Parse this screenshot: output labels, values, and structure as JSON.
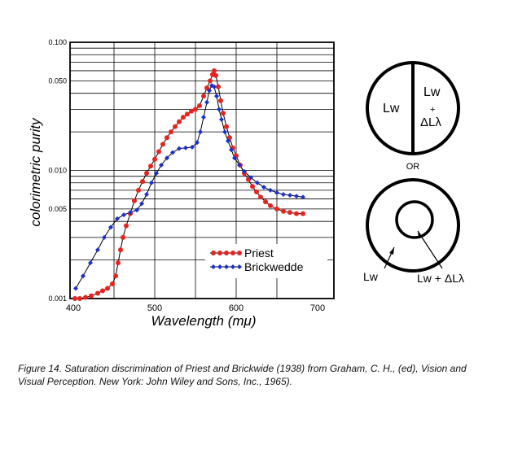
{
  "chart_data": {
    "type": "line",
    "scale_y": "log",
    "grid": true,
    "legend_position": "bottom-right",
    "xlabel": "Wavelength (mμ)",
    "ylabel": "colorimetric purity",
    "x_ticks": [
      "400",
      "500",
      "600",
      "700"
    ],
    "y_ticks": [
      "0.001",
      "0.005",
      "0.010",
      "0.050",
      "0.100"
    ],
    "xlim": [
      400,
      700
    ],
    "ylim": [
      0.001,
      0.1
    ],
    "series": [
      {
        "name": "Priest",
        "color": "#e8231e",
        "points": [
          [
            402,
            0.001
          ],
          [
            408,
            0.001
          ],
          [
            415,
            0.00102
          ],
          [
            422,
            0.00105
          ],
          [
            430,
            0.0011
          ],
          [
            436,
            0.00115
          ],
          [
            442,
            0.0012
          ],
          [
            448,
            0.0013
          ],
          [
            452,
            0.0015
          ],
          [
            455,
            0.0019
          ],
          [
            458,
            0.0024
          ],
          [
            461,
            0.003
          ],
          [
            465,
            0.0037
          ],
          [
            470,
            0.0046
          ],
          [
            475,
            0.0058
          ],
          [
            480,
            0.007
          ],
          [
            485,
            0.0082
          ],
          [
            490,
            0.0095
          ],
          [
            495,
            0.0108
          ],
          [
            500,
            0.0122
          ],
          [
            505,
            0.014
          ],
          [
            510,
            0.016
          ],
          [
            515,
            0.018
          ],
          [
            520,
            0.02
          ],
          [
            525,
            0.022
          ],
          [
            530,
            0.024
          ],
          [
            535,
            0.026
          ],
          [
            540,
            0.0275
          ],
          [
            545,
            0.029
          ],
          [
            550,
            0.03
          ],
          [
            555,
            0.032
          ],
          [
            560,
            0.038
          ],
          [
            564,
            0.044
          ],
          [
            568,
            0.05
          ],
          [
            571,
            0.056
          ],
          [
            573,
            0.06
          ],
          [
            575,
            0.055
          ],
          [
            578,
            0.045
          ],
          [
            581,
            0.035
          ],
          [
            584,
            0.028
          ],
          [
            588,
            0.022
          ],
          [
            592,
            0.018
          ],
          [
            596,
            0.015
          ],
          [
            600,
            0.013
          ],
          [
            605,
            0.011
          ],
          [
            610,
            0.0095
          ],
          [
            615,
            0.0085
          ],
          [
            620,
            0.0075
          ],
          [
            625,
            0.0068
          ],
          [
            630,
            0.0062
          ],
          [
            636,
            0.0057
          ],
          [
            642,
            0.0053
          ],
          [
            650,
            0.005
          ],
          [
            658,
            0.0048
          ],
          [
            666,
            0.0047
          ],
          [
            674,
            0.0046
          ],
          [
            682,
            0.0046
          ]
        ]
      },
      {
        "name": "Brickwedde",
        "color": "#1a2fd0",
        "points": [
          [
            403,
            0.0012
          ],
          [
            412,
            0.0015
          ],
          [
            421,
            0.0019
          ],
          [
            430,
            0.0024
          ],
          [
            438,
            0.003
          ],
          [
            446,
            0.0036
          ],
          [
            454,
            0.0042
          ],
          [
            462,
            0.0045
          ],
          [
            470,
            0.0047
          ],
          [
            478,
            0.0049
          ],
          [
            484,
            0.0055
          ],
          [
            490,
            0.0065
          ],
          [
            496,
            0.008
          ],
          [
            502,
            0.0095
          ],
          [
            508,
            0.011
          ],
          [
            515,
            0.0125
          ],
          [
            522,
            0.0138
          ],
          [
            530,
            0.0148
          ],
          [
            538,
            0.015
          ],
          [
            546,
            0.0152
          ],
          [
            552,
            0.0165
          ],
          [
            556,
            0.02
          ],
          [
            560,
            0.026
          ],
          [
            564,
            0.034
          ],
          [
            567,
            0.042
          ],
          [
            570,
            0.046
          ],
          [
            573,
            0.045
          ],
          [
            576,
            0.038
          ],
          [
            579,
            0.03
          ],
          [
            582,
            0.025
          ],
          [
            586,
            0.02
          ],
          [
            590,
            0.017
          ],
          [
            594,
            0.0145
          ],
          [
            598,
            0.0125
          ],
          [
            604,
            0.011
          ],
          [
            610,
            0.0098
          ],
          [
            618,
            0.0088
          ],
          [
            626,
            0.008
          ],
          [
            634,
            0.0074
          ],
          [
            642,
            0.007
          ],
          [
            650,
            0.0067
          ],
          [
            658,
            0.0065
          ],
          [
            666,
            0.0064
          ],
          [
            674,
            0.0063
          ],
          [
            682,
            0.0062
          ]
        ]
      }
    ]
  },
  "legend": {
    "priest": "Priest",
    "brickwedde": "Brickwedde"
  },
  "diagram": {
    "label_lw": "Lw",
    "label_lw_plus": "Lw",
    "label_plus": "+",
    "label_delta": "ΔLλ",
    "label_or": "OR",
    "label_lw_bottom": "Lw",
    "label_lw_plus_delta": "Lw + ΔLλ"
  },
  "caption": "Figure 14. Saturation discrimination of Priest and Brickwide (1938) from Graham, C. H., (ed), Vision and Visual Perception. New York: John Wiley and Sons, Inc., 1965)."
}
